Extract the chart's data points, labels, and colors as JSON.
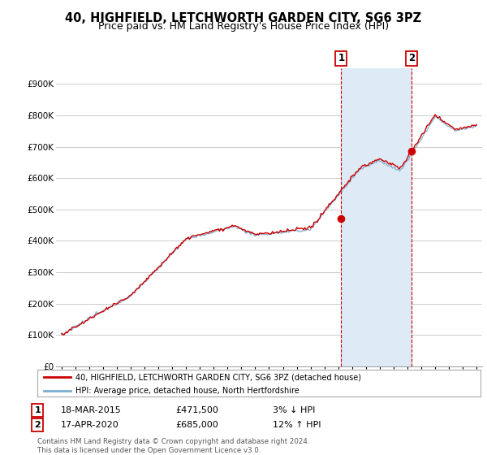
{
  "title": "40, HIGHFIELD, LETCHWORTH GARDEN CITY, SG6 3PZ",
  "subtitle": "Price paid vs. HM Land Registry's House Price Index (HPI)",
  "ylim": [
    0,
    950000
  ],
  "yticks": [
    0,
    100000,
    200000,
    300000,
    400000,
    500000,
    600000,
    700000,
    800000,
    900000
  ],
  "legend_label_red": "40, HIGHFIELD, LETCHWORTH GARDEN CITY, SG6 3PZ (detached house)",
  "legend_label_blue": "HPI: Average price, detached house, North Hertfordshire",
  "sale1_date": "18-MAR-2015",
  "sale1_price": "£471,500",
  "sale1_note": "3% ↓ HPI",
  "sale2_date": "17-APR-2020",
  "sale2_price": "£685,000",
  "sale2_note": "12% ↑ HPI",
  "footer": "Contains HM Land Registry data © Crown copyright and database right 2024.\nThis data is licensed under the Open Government Licence v3.0.",
  "vline1_x": 2015.21,
  "vline2_x": 2020.29,
  "sale1_x": 2015.21,
  "sale1_y": 471500,
  "sale2_x": 2020.29,
  "sale2_y": 685000,
  "red_color": "#cc0000",
  "blue_color": "#7bafd4",
  "shade_color": "#deeaf5",
  "background_color": "#ffffff",
  "grid_color": "#cccccc",
  "title_fontsize": 10.5,
  "subtitle_fontsize": 9,
  "xlim_left": 1994.6,
  "xlim_right": 2025.4
}
